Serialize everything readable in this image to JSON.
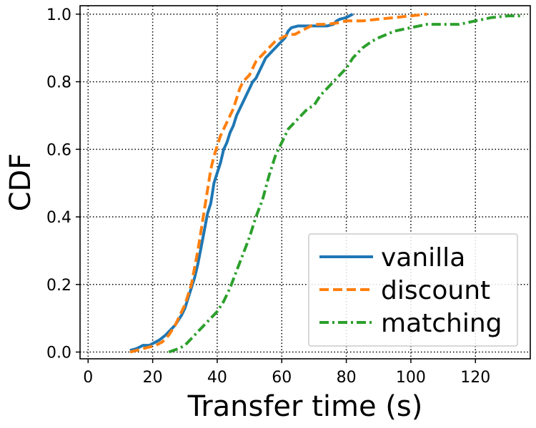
{
  "chart_data": {
    "type": "line",
    "title": "",
    "xlabel": "Transfer time (s)",
    "ylabel": "CDF",
    "xlim": [
      -2.5,
      137
    ],
    "ylim": [
      -0.02,
      1.025
    ],
    "xticks": [
      0,
      20,
      40,
      60,
      80,
      100,
      120
    ],
    "xtick_labels": [
      "0",
      "20",
      "40",
      "60",
      "80",
      "100",
      "120"
    ],
    "yticks": [
      0.0,
      0.2,
      0.4,
      0.6,
      0.8,
      1.0
    ],
    "ytick_labels": [
      "0.0",
      "0.2",
      "0.4",
      "0.6",
      "0.8",
      "1.0"
    ],
    "grid": true,
    "grid_style": "dotted",
    "legend_position": "lower-right",
    "series": [
      {
        "name": "vanilla",
        "color": "#1f77b4",
        "dash": "solid",
        "x": [
          13,
          15,
          17,
          19,
          20,
          22,
          24,
          26,
          27,
          29,
          30,
          31,
          32,
          33,
          34,
          35,
          36,
          37,
          38,
          38.5,
          39,
          40,
          41,
          42,
          43,
          44,
          45,
          46,
          47,
          48,
          49,
          50,
          51,
          52,
          53,
          54,
          55,
          56,
          57,
          58,
          59,
          60,
          61,
          62,
          63,
          65,
          68,
          70,
          72,
          74,
          76,
          77,
          78,
          80,
          82
        ],
        "y": [
          0.005,
          0.01,
          0.02,
          0.02,
          0.025,
          0.035,
          0.05,
          0.07,
          0.08,
          0.11,
          0.13,
          0.16,
          0.19,
          0.22,
          0.26,
          0.31,
          0.36,
          0.41,
          0.44,
          0.47,
          0.5,
          0.53,
          0.56,
          0.6,
          0.62,
          0.65,
          0.67,
          0.7,
          0.72,
          0.74,
          0.76,
          0.78,
          0.8,
          0.81,
          0.83,
          0.85,
          0.87,
          0.88,
          0.89,
          0.9,
          0.91,
          0.92,
          0.93,
          0.95,
          0.96,
          0.965,
          0.965,
          0.965,
          0.965,
          0.965,
          0.97,
          0.98,
          0.985,
          0.99,
          1.0
        ]
      },
      {
        "name": "discount",
        "color": "#ff7f0e",
        "dash": "dashed",
        "x": [
          13,
          15,
          17,
          19,
          21,
          23,
          25,
          27,
          28,
          30,
          31,
          32,
          33,
          34,
          35,
          36,
          37,
          38,
          39,
          40,
          41,
          42,
          43,
          44,
          45,
          46,
          47,
          48,
          49,
          50,
          51,
          52,
          53,
          54,
          55,
          56,
          57,
          58,
          60,
          62,
          64,
          66,
          68,
          70,
          74,
          78,
          80,
          85,
          90,
          95,
          100,
          105
        ],
        "y": [
          0.0,
          0.005,
          0.01,
          0.015,
          0.02,
          0.03,
          0.05,
          0.08,
          0.1,
          0.14,
          0.17,
          0.2,
          0.25,
          0.3,
          0.36,
          0.42,
          0.48,
          0.54,
          0.58,
          0.61,
          0.64,
          0.66,
          0.68,
          0.7,
          0.72,
          0.75,
          0.78,
          0.8,
          0.81,
          0.82,
          0.84,
          0.86,
          0.87,
          0.88,
          0.89,
          0.9,
          0.91,
          0.92,
          0.93,
          0.94,
          0.94,
          0.95,
          0.96,
          0.97,
          0.97,
          0.975,
          0.98,
          0.98,
          0.985,
          0.99,
          0.995,
          1.0
        ]
      },
      {
        "name": "matching",
        "color": "#2ca02c",
        "dash": "dashdot",
        "x": [
          25,
          28,
          30,
          32,
          34,
          36,
          38,
          40,
          42,
          44,
          46,
          48,
          50,
          52,
          54,
          56,
          57,
          58,
          59,
          60,
          61,
          62,
          63,
          64,
          66,
          68,
          70,
          72,
          74,
          76,
          78,
          80,
          82,
          85,
          88,
          90,
          95,
          100,
          105,
          110,
          115,
          120,
          125,
          130,
          135
        ],
        "y": [
          0.0,
          0.01,
          0.02,
          0.04,
          0.06,
          0.08,
          0.1,
          0.12,
          0.15,
          0.19,
          0.24,
          0.29,
          0.34,
          0.4,
          0.45,
          0.52,
          0.55,
          0.58,
          0.6,
          0.62,
          0.64,
          0.66,
          0.67,
          0.68,
          0.7,
          0.72,
          0.73,
          0.76,
          0.78,
          0.8,
          0.82,
          0.84,
          0.87,
          0.9,
          0.92,
          0.93,
          0.95,
          0.96,
          0.97,
          0.97,
          0.97,
          0.98,
          0.99,
          0.995,
          0.995
        ]
      }
    ]
  }
}
